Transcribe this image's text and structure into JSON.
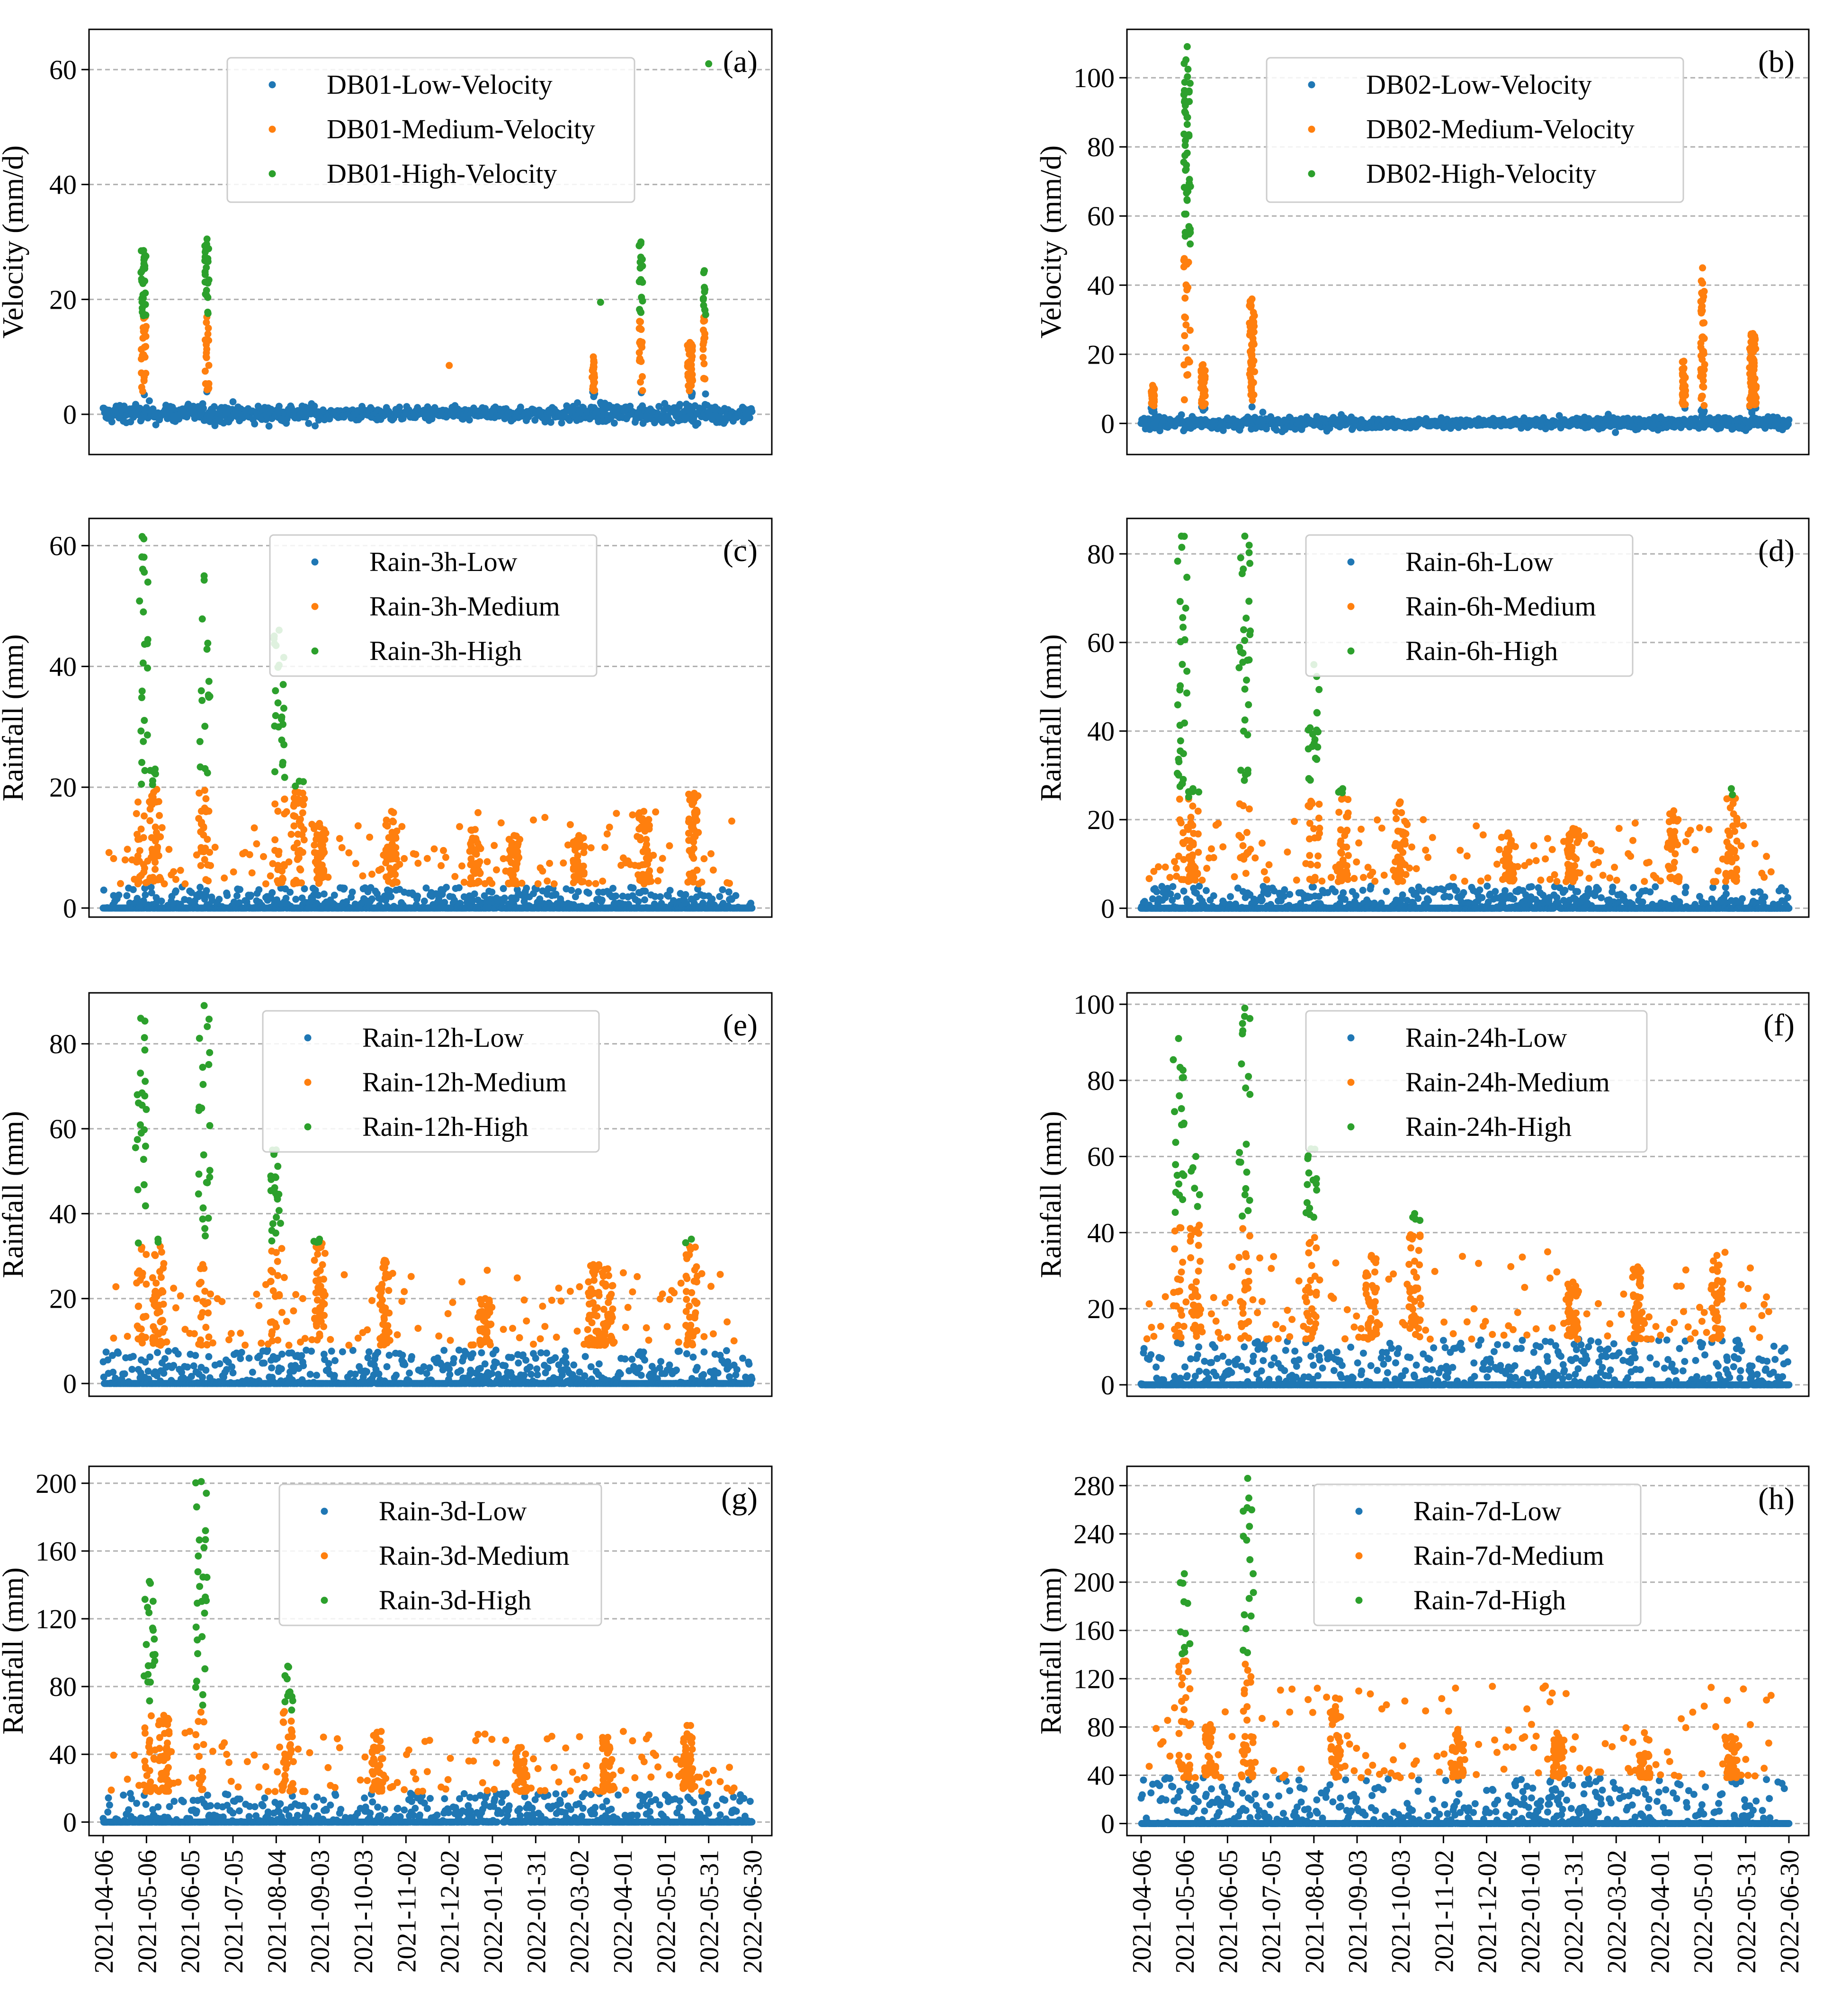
{
  "figure": {
    "description_units": "mm/d and mm"
  },
  "x_axis": {
    "dates": [
      "2021-04-06",
      "2021-05-06",
      "2021-06-05",
      "2021-07-05",
      "2021-08-04",
      "2021-09-03",
      "2021-10-03",
      "2021-11-02",
      "2021-12-02",
      "2022-01-01",
      "2022-01-31",
      "2022-03-02",
      "2022-04-01",
      "2022-05-01",
      "2022-05-31",
      "2022-06-30"
    ],
    "start_day": 0,
    "end_day": 450
  },
  "colors": {
    "low": "#1f77b4",
    "medium": "#ff7f0e",
    "high": "#2ca02c"
  },
  "chart_data": [
    {
      "id": "a",
      "type": "scatter",
      "panel_label": "(a)",
      "ylabel": "Velocity (mm/d)",
      "ylim": [
        -7,
        67
      ],
      "yticks": [
        0,
        20,
        40,
        60
      ],
      "legend": [
        "DB01-Low-Velocity",
        "DB01-Medium-Velocity",
        "DB01-High-Velocity"
      ],
      "profile": "velocity",
      "low_band": 2.2,
      "low_noise": 1.2,
      "events": [
        {
          "day": 28,
          "width": 6,
          "peak": 28.5,
          "med_threshold": 4,
          "high_threshold": 17
        },
        {
          "day": 72,
          "width": 5,
          "peak": 30.5,
          "med_threshold": 4,
          "high_threshold": 17
        },
        {
          "day": 340,
          "width": 3,
          "peak": 10,
          "med_threshold": 4,
          "high_threshold": 17
        },
        {
          "day": 373,
          "width": 4,
          "peak": 30,
          "med_threshold": 4,
          "high_threshold": 17
        },
        {
          "day": 407,
          "width": 6,
          "peak": 12.5,
          "med_threshold": 4,
          "high_threshold": 17
        },
        {
          "day": 417,
          "width": 3,
          "peak": 25,
          "med_threshold": 4,
          "high_threshold": 17
        }
      ],
      "outliers": [
        {
          "day": 420,
          "value": 61,
          "level": "high"
        },
        {
          "day": 345,
          "value": 19.5,
          "level": "high"
        },
        {
          "day": 240,
          "value": 8.5,
          "level": "medium"
        }
      ]
    },
    {
      "id": "b",
      "type": "scatter",
      "panel_label": "(b)",
      "ylabel": "Velocity (mm/d)",
      "ylim": [
        -9,
        114
      ],
      "yticks": [
        0,
        20,
        40,
        60,
        80,
        100
      ],
      "legend": [
        "DB02-Low-Velocity",
        "DB02-Medium-Velocity",
        "DB02-High-Velocity"
      ],
      "profile": "velocity",
      "low_band": 2.5,
      "low_noise": 1.4,
      "events": [
        {
          "day": 8,
          "width": 4,
          "peak": 11,
          "med_threshold": 5,
          "high_threshold": 50
        },
        {
          "day": 32,
          "width": 8,
          "peak": 109,
          "med_threshold": 5,
          "high_threshold": 50
        },
        {
          "day": 43,
          "width": 5,
          "peak": 17,
          "med_threshold": 5,
          "high_threshold": 50
        },
        {
          "day": 77,
          "width": 6,
          "peak": 36,
          "med_threshold": 5,
          "high_threshold": 50
        },
        {
          "day": 377,
          "width": 4,
          "peak": 18,
          "med_threshold": 5,
          "high_threshold": 50
        },
        {
          "day": 390,
          "width": 5,
          "peak": 45,
          "med_threshold": 5,
          "high_threshold": 50
        },
        {
          "day": 425,
          "width": 8,
          "peak": 26,
          "med_threshold": 5,
          "high_threshold": 50
        }
      ],
      "outliers": []
    },
    {
      "id": "c",
      "type": "scatter",
      "panel_label": "(c)",
      "ylabel": "Rainfall (mm)",
      "ylim": [
        -1.5,
        64.5
      ],
      "yticks": [
        0,
        20,
        40,
        60
      ],
      "legend": [
        "Rain-3h-Low",
        "Rain-3h-Medium",
        "Rain-3h-High"
      ],
      "profile": "rain",
      "low_band": 3.5,
      "med_threshold": 4,
      "high_threshold": 20,
      "events": [
        {
          "day": 27,
          "peak": 61.5
        },
        {
          "day": 36,
          "peak": 23
        },
        {
          "day": 70,
          "peak": 55
        },
        {
          "day": 122,
          "peak": 46
        },
        {
          "day": 136,
          "peak": 21
        },
        {
          "day": 150,
          "peak": 14
        },
        {
          "day": 200,
          "peak": 16
        },
        {
          "day": 258,
          "peak": 13
        },
        {
          "day": 285,
          "peak": 12
        },
        {
          "day": 330,
          "peak": 12
        },
        {
          "day": 375,
          "peak": 16
        },
        {
          "day": 410,
          "peak": 19
        }
      ]
    },
    {
      "id": "d",
      "type": "scatter",
      "panel_label": "(d)",
      "ylabel": "Rainfall (mm)",
      "ylim": [
        -2,
        88
      ],
      "yticks": [
        0,
        20,
        40,
        60,
        80
      ],
      "legend": [
        "Rain-6h-Low",
        "Rain-6h-Medium",
        "Rain-6h-High"
      ],
      "profile": "rain",
      "low_band": 5,
      "med_threshold": 6,
      "high_threshold": 25,
      "events": [
        {
          "day": 28,
          "peak": 84
        },
        {
          "day": 36,
          "peak": 27
        },
        {
          "day": 72,
          "peak": 84
        },
        {
          "day": 120,
          "peak": 55
        },
        {
          "day": 140,
          "peak": 27
        },
        {
          "day": 180,
          "peak": 24
        },
        {
          "day": 255,
          "peak": 17
        },
        {
          "day": 300,
          "peak": 18
        },
        {
          "day": 370,
          "peak": 22
        },
        {
          "day": 410,
          "peak": 27
        }
      ]
    },
    {
      "id": "e",
      "type": "scatter",
      "panel_label": "(e)",
      "ylabel": "Rainfall (mm)",
      "ylim": [
        -3,
        92
      ],
      "yticks": [
        0,
        20,
        40,
        60,
        80
      ],
      "legend": [
        "Rain-12h-Low",
        "Rain-12h-Medium",
        "Rain-12h-High"
      ],
      "profile": "rain",
      "low_band": 8,
      "med_threshold": 9,
      "high_threshold": 33,
      "events": [
        {
          "day": 26,
          "peak": 86
        },
        {
          "day": 38,
          "peak": 34
        },
        {
          "day": 70,
          "peak": 89
        },
        {
          "day": 120,
          "peak": 55
        },
        {
          "day": 150,
          "peak": 34
        },
        {
          "day": 195,
          "peak": 29
        },
        {
          "day": 265,
          "peak": 20
        },
        {
          "day": 340,
          "peak": 28
        },
        {
          "day": 350,
          "peak": 27
        },
        {
          "day": 408,
          "peak": 34
        }
      ]
    },
    {
      "id": "f",
      "type": "scatter",
      "panel_label": "(f)",
      "ylabel": "Rainfall (mm)",
      "ylim": [
        -3,
        103
      ],
      "yticks": [
        0,
        20,
        40,
        60,
        80,
        100
      ],
      "legend": [
        "Rain-24h-Low",
        "Rain-24h-Medium",
        "Rain-24h-High"
      ],
      "profile": "rain",
      "low_band": 12,
      "med_threshold": 12,
      "high_threshold": 43,
      "events": [
        {
          "day": 26,
          "peak": 91
        },
        {
          "day": 38,
          "peak": 60
        },
        {
          "day": 72,
          "peak": 99
        },
        {
          "day": 118,
          "peak": 62
        },
        {
          "day": 190,
          "peak": 45
        },
        {
          "day": 160,
          "peak": 34
        },
        {
          "day": 300,
          "peak": 27
        },
        {
          "day": 345,
          "peak": 31
        },
        {
          "day": 400,
          "peak": 34
        }
      ]
    },
    {
      "id": "g",
      "type": "scatter",
      "panel_label": "(g)",
      "ylabel": "Rainfall (mm)",
      "ylim": [
        -8,
        210
      ],
      "yticks": [
        0,
        40,
        80,
        120,
        160,
        200
      ],
      "legend": [
        "Rain-3d-Low",
        "Rain-3d-Medium",
        "Rain-3d-High"
      ],
      "profile": "rain",
      "low_band": 17,
      "med_threshold": 18,
      "high_threshold": 66,
      "events": [
        {
          "day": 32,
          "peak": 142
        },
        {
          "day": 68,
          "peak": 201
        },
        {
          "day": 128,
          "peak": 92
        },
        {
          "day": 42,
          "peak": 63
        },
        {
          "day": 190,
          "peak": 53
        },
        {
          "day": 290,
          "peak": 44
        },
        {
          "day": 350,
          "peak": 50
        },
        {
          "day": 405,
          "peak": 57
        }
      ]
    },
    {
      "id": "h",
      "type": "scatter",
      "panel_label": "(h)",
      "ylabel": "Rainfall (mm)",
      "ylim": [
        -10,
        296
      ],
      "yticks": [
        0,
        40,
        80,
        120,
        160,
        200,
        240,
        280
      ],
      "legend": [
        "Rain-7d-Low",
        "Rain-7d-Medium",
        "Rain-7d-High"
      ],
      "profile": "rain",
      "low_band": 38,
      "med_threshold": 38,
      "high_threshold": 140,
      "events": [
        {
          "day": 30,
          "peak": 207
        },
        {
          "day": 74,
          "peak": 286
        },
        {
          "day": 48,
          "peak": 82
        },
        {
          "day": 135,
          "peak": 104
        },
        {
          "day": 220,
          "peak": 78
        },
        {
          "day": 290,
          "peak": 72
        },
        {
          "day": 350,
          "peak": 58
        },
        {
          "day": 410,
          "peak": 72
        }
      ]
    }
  ]
}
